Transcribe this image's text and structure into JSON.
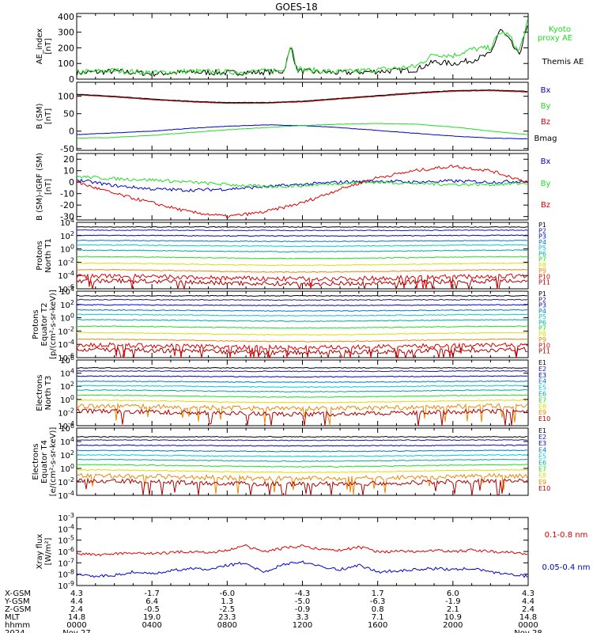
{
  "title": "GOES-18",
  "colors": {
    "black": "#000000",
    "blue": "#0000cc",
    "green": "#22dd22",
    "red": "#dd0000",
    "navy": "#1a1a99",
    "cyan": "#00cccc",
    "teal": "#00aa99",
    "yellow": "#dddd00",
    "orange": "#ee8800",
    "darkred": "#aa0000",
    "purple": "#6600aa"
  },
  "chart_data": [
    {
      "type": "line",
      "id": "ae",
      "ylabel": "AE_index [nT]",
      "ylim": [
        0,
        420
      ],
      "yticks": [
        "400",
        "300",
        "200",
        "100",
        "0"
      ],
      "ytick_values": [
        400,
        300,
        200,
        100,
        0
      ],
      "x_hours": [
        0,
        2,
        4,
        6,
        8,
        10,
        11,
        11.4,
        11.7,
        12,
        14,
        16,
        18,
        19,
        20,
        21,
        22,
        22.5,
        23,
        23.5,
        24
      ],
      "series": [
        {
          "name": "Themis AE",
          "color": "#000000",
          "values": [
            40,
            50,
            35,
            45,
            40,
            45,
            50,
            210,
            60,
            50,
            40,
            50,
            60,
            110,
            100,
            120,
            160,
            320,
            250,
            150,
            350
          ]
        },
        {
          "name": "Kyoto proxy AE",
          "color": "#22dd22",
          "values": [
            45,
            55,
            40,
            50,
            45,
            50,
            55,
            230,
            70,
            60,
            45,
            60,
            80,
            160,
            150,
            190,
            200,
            300,
            280,
            170,
            380
          ]
        }
      ]
    },
    {
      "type": "line",
      "id": "bsm",
      "ylabel": "B (SM) [nT]",
      "ylim": [
        -55,
        140
      ],
      "yticks": [
        "100",
        "50",
        "0",
        "-50"
      ],
      "ytick_values": [
        100,
        50,
        0,
        -50
      ],
      "x_hours": [
        0,
        2,
        4,
        6,
        8,
        10,
        12,
        14,
        16,
        18,
        20,
        22,
        24
      ],
      "series": [
        {
          "name": "Bx",
          "color": "#0000cc",
          "values": [
            -10,
            -5,
            0,
            8,
            14,
            18,
            16,
            10,
            2,
            -6,
            -14,
            -20,
            -22
          ]
        },
        {
          "name": "By",
          "color": "#22dd22",
          "values": [
            -20,
            -18,
            -12,
            -4,
            4,
            10,
            16,
            20,
            22,
            20,
            12,
            0,
            -10
          ]
        },
        {
          "name": "Bz",
          "color": "#dd0000",
          "values": [
            104,
            98,
            90,
            84,
            80,
            80,
            84,
            92,
            100,
            108,
            114,
            116,
            112
          ]
        },
        {
          "name": "Bmag",
          "color": "#000000",
          "values": [
            106,
            100,
            92,
            86,
            82,
            82,
            86,
            94,
            102,
            110,
            116,
            118,
            114
          ]
        }
      ]
    },
    {
      "type": "line",
      "id": "bsmigrf",
      "ylabel": "B (SM)-IGRF (SM) [nT]",
      "ylim": [
        -33,
        25
      ],
      "yticks": [
        "20",
        "10",
        "0",
        "-10",
        "-20",
        "-30"
      ],
      "ytick_values": [
        20,
        10,
        0,
        -10,
        -20,
        -30
      ],
      "x_hours": [
        0,
        2,
        4,
        6,
        8,
        10,
        12,
        14,
        16,
        18,
        20,
        22,
        24
      ],
      "series": [
        {
          "name": "Bx",
          "color": "#0000cc",
          "values": [
            2,
            -3,
            -6,
            -7,
            -6,
            -4,
            -2,
            0,
            1,
            0,
            1,
            0,
            1
          ]
        },
        {
          "name": "By",
          "color": "#22dd22",
          "values": [
            5,
            3,
            2,
            0,
            -2,
            -4,
            -3,
            -1,
            0,
            -1,
            -2,
            -2,
            -1
          ]
        },
        {
          "name": "Bz",
          "color": "#dd0000",
          "values": [
            0,
            -10,
            -18,
            -26,
            -30,
            -26,
            -18,
            -6,
            4,
            10,
            14,
            10,
            0
          ]
        }
      ]
    },
    {
      "type": "line",
      "id": "protons_n",
      "ylabel": "Protons North T1",
      "log": true,
      "ylim_exp": [
        -6,
        4
      ],
      "yticks": [
        "10^4",
        "10^2",
        "10^0",
        "10^-2",
        "10^-4",
        "10^-6"
      ],
      "ytick_exps": [
        4,
        2,
        0,
        -2,
        -4,
        -6
      ],
      "channels": [
        "P1",
        "P2",
        "P3",
        "P4",
        "P5",
        "P6",
        "P7",
        "P8",
        "P9",
        "P10",
        "P11"
      ],
      "log_levels": [
        3.3,
        2.8,
        2.0,
        1.2,
        0.5,
        -0.3,
        -1.3,
        -2.3,
        -3.3,
        -4.3,
        -5.0
      ],
      "channel_colors": [
        "#000000",
        "#1a1a99",
        "#0000cc",
        "#0077cc",
        "#00cccc",
        "#00aa99",
        "#22dd22",
        "#dddd00",
        "#ee8800",
        "#dd0000",
        "#aa0000"
      ]
    },
    {
      "type": "line",
      "id": "protons_e",
      "ylabel": "Protons Equator T2 [p/(cm²-s-sr-keV)]",
      "log": true,
      "ylim_exp": [
        -6,
        4
      ],
      "yticks": [
        "10^4",
        "10^2",
        "10^0",
        "10^-2",
        "10^-4",
        "10^-6"
      ],
      "ytick_exps": [
        4,
        2,
        0,
        -2,
        -4,
        -6
      ],
      "channels": [
        "P1",
        "P2",
        "P3",
        "P4",
        "P5",
        "P6",
        "P7",
        "P8",
        "P9",
        "P10",
        "P11"
      ],
      "log_levels": [
        3.3,
        2.7,
        1.9,
        1.1,
        0.4,
        -0.4,
        -1.4,
        -2.4,
        -3.4,
        -4.3,
        -5.0
      ],
      "channel_colors": [
        "#000000",
        "#1a1a99",
        "#0000cc",
        "#0077cc",
        "#00cccc",
        "#00aa99",
        "#22dd22",
        "#dddd00",
        "#ee8800",
        "#dd0000",
        "#aa0000"
      ]
    },
    {
      "type": "line",
      "id": "electrons_n",
      "ylabel": "Electrons North T3",
      "log": true,
      "ylim_exp": [
        -4,
        6
      ],
      "yticks": [
        "10^6",
        "10^4",
        "10^2",
        "10^0",
        "10^-2",
        "10^-4"
      ],
      "ytick_exps": [
        6,
        4,
        2,
        0,
        -2,
        -4
      ],
      "channels": [
        "E1",
        "E2",
        "E3",
        "E4",
        "E5",
        "E6",
        "E7",
        "E8",
        "E9",
        "E10"
      ],
      "log_levels": [
        4.8,
        4.3,
        3.5,
        2.7,
        2.0,
        1.3,
        0.5,
        -0.3,
        -1.2,
        -2.0
      ],
      "channel_colors": [
        "#000000",
        "#1a1a99",
        "#0000cc",
        "#0077cc",
        "#00cccc",
        "#00aa99",
        "#22dd22",
        "#dddd00",
        "#ee8800",
        "#aa0000"
      ]
    },
    {
      "type": "line",
      "id": "electrons_e",
      "ylabel": "Electrons Equator T4 [e/(cm²-s-sr-keV)]",
      "log": true,
      "ylim_exp": [
        -4,
        6
      ],
      "yticks": [
        "10^6",
        "10^4",
        "10^2",
        "10^0",
        "10^-2",
        "10^-4"
      ],
      "ytick_exps": [
        6,
        4,
        2,
        0,
        -2,
        -4
      ],
      "channels": [
        "E1",
        "E2",
        "E3",
        "E4",
        "E5",
        "E6",
        "E7",
        "E8",
        "E9",
        "E10"
      ],
      "log_levels": [
        4.7,
        4.2,
        3.4,
        2.6,
        1.9,
        1.2,
        0.4,
        -0.4,
        -1.3,
        -2.1
      ],
      "channel_colors": [
        "#000000",
        "#1a1a99",
        "#0000cc",
        "#0077cc",
        "#00cccc",
        "#00aa99",
        "#22dd22",
        "#dddd00",
        "#ee8800",
        "#aa0000"
      ]
    },
    {
      "type": "line",
      "id": "xray",
      "ylabel": "Xray flux [W/m²]",
      "log": true,
      "ylim_exp": [
        -9,
        -3
      ],
      "yticks": [
        "10^-3",
        "10^-4",
        "10^-5",
        "10^-6",
        "10^-7",
        "10^-8",
        "10^-9"
      ],
      "ytick_exps": [
        -3,
        -4,
        -5,
        -6,
        -7,
        -8,
        -9
      ],
      "x_hours": [
        0,
        1,
        2,
        3,
        4,
        5,
        6,
        7,
        8,
        9,
        9.5,
        10,
        11,
        12,
        13,
        14,
        15,
        16,
        17,
        18,
        19,
        20,
        21,
        22,
        23,
        24
      ],
      "series": [
        {
          "name": "0.1-0.8 nm",
          "color": "#dd0000",
          "log_values": [
            -6.2,
            -6.3,
            -6.2,
            -6.1,
            -6.2,
            -6.1,
            -6.0,
            -6.1,
            -5.9,
            -5.5,
            -5.8,
            -6.0,
            -5.7,
            -5.5,
            -5.8,
            -5.9,
            -5.6,
            -6.0,
            -6.0,
            -6.0,
            -5.9,
            -6.0,
            -5.9,
            -6.0,
            -6.1,
            -6.2
          ]
        },
        {
          "name": "0.05-0.4 nm",
          "color": "#0000cc",
          "log_values": [
            -8.0,
            -8.2,
            -8.1,
            -7.8,
            -8.0,
            -7.7,
            -7.5,
            -7.6,
            -7.2,
            -7.0,
            -7.5,
            -7.8,
            -7.1,
            -6.9,
            -7.3,
            -7.6,
            -7.2,
            -7.8,
            -7.7,
            -7.6,
            -7.5,
            -7.6,
            -7.5,
            -7.8,
            -8.0,
            -8.2
          ]
        }
      ]
    }
  ],
  "ae_legend": {
    "line1": "Kyoto",
    "line2": "proxy AE",
    "line3": "Themis AE"
  },
  "x_axis": {
    "row_labels": [
      "X-GSM",
      "Y-GSM",
      "Z-GSM",
      "MLT",
      "hhmm",
      "2024"
    ],
    "columns": [
      {
        "x": "4.3",
        "y": "4.4",
        "z": "2.4",
        "mlt": "14.8",
        "hhmm": "0000",
        "date": "Nov 27"
      },
      {
        "x": "-1.7",
        "y": "6.4",
        "z": "-0.5",
        "mlt": "19.0",
        "hhmm": "0400",
        "date": ""
      },
      {
        "x": "-6.0",
        "y": "1.3",
        "z": "-2.5",
        "mlt": "23.3",
        "hhmm": "0800",
        "date": ""
      },
      {
        "x": "-4.3",
        "y": "-5.0",
        "z": "-0.9",
        "mlt": "3.3",
        "hhmm": "1200",
        "date": ""
      },
      {
        "x": "1.7",
        "y": "-6.3",
        "z": "0.8",
        "mlt": "7.1",
        "hhmm": "1600",
        "date": ""
      },
      {
        "x": "6.0",
        "y": "-1.9",
        "z": "2.1",
        "mlt": "10.9",
        "hhmm": "2000",
        "date": ""
      },
      {
        "x": "4.3",
        "y": "4.4",
        "z": "2.4",
        "mlt": "14.8",
        "hhmm": "0000",
        "date": "Nov 28"
      }
    ]
  }
}
